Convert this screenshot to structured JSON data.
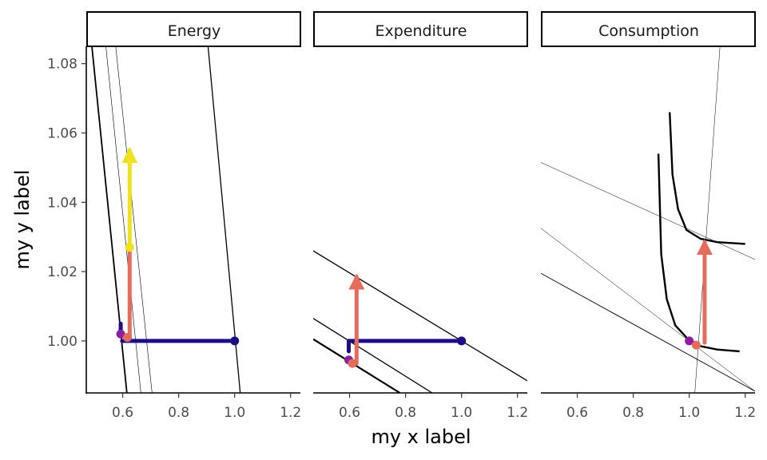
{
  "chart_data": {
    "type": "line",
    "xlabel": "my x label",
    "ylabel": "my y label",
    "xlim": [
      0.47,
      1.235
    ],
    "ylim": [
      0.985,
      1.085
    ],
    "x_ticks": [
      0.6,
      0.8,
      1.0,
      1.2
    ],
    "x_tick_labels": [
      "0.6",
      "0.8",
      "1.0",
      "1.2"
    ],
    "y_ticks": [
      1.0,
      1.02,
      1.04,
      1.06,
      1.08
    ],
    "y_tick_labels": [
      "1.00",
      "1.02",
      "1.04",
      "1.06",
      "1.08"
    ],
    "grid": false,
    "colors": {
      "navy": "#1c0d86",
      "purple": "#8e1ea1",
      "salmon": "#e56b5b",
      "yellow": "#f0e11e",
      "line": "#000000"
    },
    "panels": [
      {
        "title": "Energy",
        "lines": [
          {
            "x1": 0.49,
            "y1": 1.085,
            "x2": 0.615,
            "y2": 0.985,
            "width": 1.8
          },
          {
            "x1": 0.54,
            "y1": 1.085,
            "x2": 0.665,
            "y2": 0.985,
            "width": 0.6
          },
          {
            "x1": 0.575,
            "y1": 1.085,
            "x2": 0.705,
            "y2": 0.985,
            "width": 0.6
          },
          {
            "x1": 0.905,
            "y1": 1.085,
            "x2": 1.02,
            "y2": 0.985,
            "width": 1.3
          }
        ],
        "curves": [],
        "segments": [
          {
            "x1": 0.593,
            "y1": 1.005,
            "x2": 0.593,
            "y2": 1.002,
            "color": "navy",
            "arrow": false
          },
          {
            "x1": 0.598,
            "y1": 1.0,
            "x2": 1.0,
            "y2": 1.0,
            "color": "navy",
            "arrow": false
          },
          {
            "x1": 0.625,
            "y1": 1.001,
            "x2": 0.625,
            "y2": 1.027,
            "color": "salmon",
            "arrow": false
          },
          {
            "x1": 0.625,
            "y1": 1.027,
            "x2": 0.625,
            "y2": 1.055,
            "color": "yellow",
            "arrow": true
          }
        ],
        "points": [
          {
            "x": 0.593,
            "y": 1.002,
            "color": "purple"
          },
          {
            "x": 0.617,
            "y": 1.001,
            "color": "salmon"
          },
          {
            "x": 1.0,
            "y": 1.0,
            "color": "navy"
          },
          {
            "x": 0.625,
            "y": 1.027,
            "color": "yellow"
          }
        ]
      },
      {
        "title": "Expenditure",
        "lines": [
          {
            "x1": 0.47,
            "y1": 1.026,
            "x2": 1.235,
            "y2": 0.9885,
            "width": 1.3
          },
          {
            "x1": 0.47,
            "y1": 1.0065,
            "x2": 0.895,
            "y2": 0.985,
            "width": 1.3
          },
          {
            "x1": 0.47,
            "y1": 1.0005,
            "x2": 0.78,
            "y2": 0.985,
            "width": 2.2
          }
        ],
        "curves": [],
        "segments": [
          {
            "x1": 0.597,
            "y1": 0.997,
            "x2": 0.597,
            "y2": 1.0,
            "color": "navy",
            "arrow": false
          },
          {
            "x1": 0.597,
            "y1": 1.0,
            "x2": 1.0,
            "y2": 1.0,
            "color": "navy",
            "arrow": false
          },
          {
            "x1": 0.625,
            "y1": 0.9935,
            "x2": 0.625,
            "y2": 1.0185,
            "color": "salmon",
            "arrow": true
          }
        ],
        "points": [
          {
            "x": 0.597,
            "y": 0.9945,
            "color": "purple"
          },
          {
            "x": 0.61,
            "y": 0.9935,
            "color": "salmon"
          },
          {
            "x": 1.0,
            "y": 1.0,
            "color": "navy"
          }
        ]
      },
      {
        "title": "Consumption",
        "lines": [
          {
            "x1": 1.02,
            "y1": 0.985,
            "x2": 1.11,
            "y2": 1.085,
            "width": 0.5
          },
          {
            "x1": 0.47,
            "y1": 1.0515,
            "x2": 1.235,
            "y2": 1.0235,
            "width": 0.5
          },
          {
            "x1": 0.47,
            "y1": 1.0325,
            "x2": 1.235,
            "y2": 0.9855,
            "width": 0.5
          },
          {
            "x1": 0.47,
            "y1": 1.0195,
            "x2": 1.235,
            "y2": 0.9855,
            "width": 0.9
          }
        ],
        "curves": [
          {
            "points": [
              [
                0.93,
                1.066
              ],
              [
                0.94,
                1.048
              ],
              [
                0.96,
                1.038
              ],
              [
                0.99,
                1.032
              ],
              [
                1.04,
                1.0295
              ],
              [
                1.1,
                1.0285
              ],
              [
                1.2,
                1.028
              ]
            ]
          },
          {
            "points": [
              [
                0.89,
                1.054
              ],
              [
                0.9,
                1.025
              ],
              [
                0.92,
                1.012
              ],
              [
                0.95,
                1.0045
              ],
              [
                0.99,
                1.001
              ],
              [
                1.04,
                0.9985
              ],
              [
                1.1,
                0.9975
              ],
              [
                1.18,
                0.997
              ]
            ]
          }
        ],
        "segments": [
          {
            "x1": 1.055,
            "y1": 0.9995,
            "x2": 1.055,
            "y2": 1.0285,
            "color": "salmon",
            "arrow": true
          }
        ],
        "points": [
          {
            "x": 1.0,
            "y": 1.0,
            "color": "purple"
          },
          {
            "x": 1.025,
            "y": 0.9988,
            "color": "salmon"
          }
        ]
      }
    ]
  }
}
